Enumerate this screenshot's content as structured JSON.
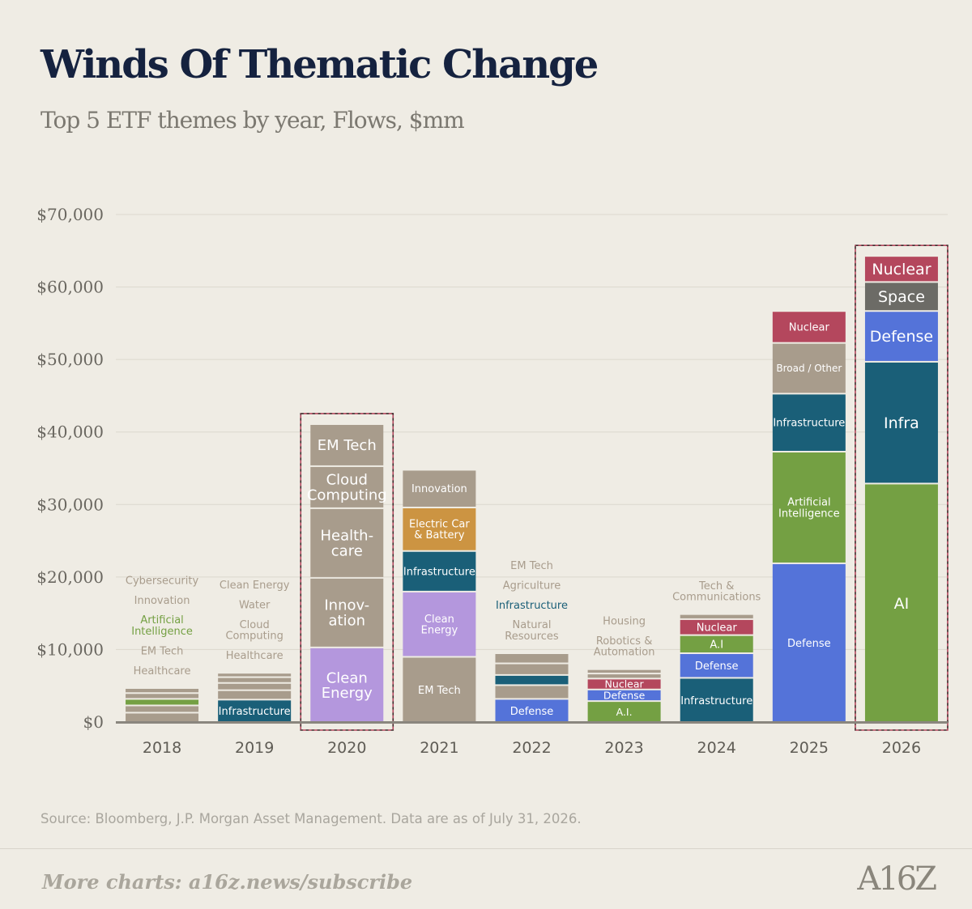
{
  "title": "Winds Of Thematic Change",
  "subtitle": "Top 5 ETF themes by year, Flows, $mm",
  "source": "Source: Bloomberg, J.P. Morgan Asset Management. Data are as of July 31, 2026.",
  "footer": {
    "more_charts": "More charts: a16z.news/subscribe",
    "logo": "A16Z"
  },
  "colors": {
    "gray": "#a89c8c",
    "teal": "#1a5f78",
    "green": "#74a043",
    "lavender": "#b497dd",
    "orange": "#cc9442",
    "blue": "#5473d9",
    "red": "#b4475d",
    "darkgray": "#6c6b66",
    "highlight_box": "#b4475d",
    "axis": "#8a867e"
  },
  "chart_data": {
    "type": "bar",
    "stacked": true,
    "y_tick_labels": [
      "$0",
      "$10,000",
      "$20,000",
      "$30,000",
      "$40,000",
      "$50,000",
      "$60,000",
      "$70,000"
    ],
    "ylim": [
      0,
      70000
    ],
    "grid": true,
    "highlighted_years": [
      "2020",
      "2026"
    ],
    "bars": [
      {
        "year": "2018",
        "segments": [
          {
            "value": 1400,
            "color": "gray",
            "label": ""
          },
          {
            "value": 1000,
            "color": "gray",
            "label": ""
          },
          {
            "value": 900,
            "color": "green",
            "label": ""
          },
          {
            "value": 800,
            "color": "gray",
            "label": ""
          },
          {
            "value": 700,
            "color": "gray",
            "label": ""
          }
        ],
        "side_labels": [
          {
            "text": "Healthcare",
            "color": "gray"
          },
          {
            "text": "EM Tech",
            "color": "gray"
          },
          {
            "text": "Artificial\nIntelligence",
            "color": "green"
          },
          {
            "text": "Innovation",
            "color": "gray"
          },
          {
            "text": "Cybersecurity",
            "color": "gray"
          }
        ]
      },
      {
        "year": "2019",
        "segments": [
          {
            "value": 3200,
            "color": "teal",
            "label": "Infrastructure"
          },
          {
            "value": 1300,
            "color": "gray",
            "label": ""
          },
          {
            "value": 1000,
            "color": "gray",
            "label": ""
          },
          {
            "value": 800,
            "color": "gray",
            "label": ""
          },
          {
            "value": 600,
            "color": "gray",
            "label": ""
          }
        ],
        "side_labels": [
          {
            "text": "Healthcare",
            "color": "gray"
          },
          {
            "text": "Cloud\nComputing",
            "color": "gray"
          },
          {
            "text": "Water",
            "color": "gray"
          },
          {
            "text": "Clean Energy",
            "color": "gray"
          }
        ]
      },
      {
        "year": "2020",
        "segments": [
          {
            "value": 10400,
            "color": "lavender",
            "label": "Clean\nEnergy"
          },
          {
            "value": 9600,
            "color": "gray",
            "label": "Innov-\nation"
          },
          {
            "value": 9600,
            "color": "gray",
            "label": "Health-\ncare"
          },
          {
            "value": 5800,
            "color": "gray",
            "label": "Cloud\nComputing"
          },
          {
            "value": 5800,
            "color": "gray",
            "label": "EM Tech"
          }
        ]
      },
      {
        "year": "2021",
        "segments": [
          {
            "value": 9100,
            "color": "gray",
            "label": "EM Tech"
          },
          {
            "value": 9000,
            "color": "lavender",
            "label": "Clean\nEnergy"
          },
          {
            "value": 5600,
            "color": "teal",
            "label": "Infrastructure"
          },
          {
            "value": 6000,
            "color": "orange",
            "label": "Electric Car\n& Battery"
          },
          {
            "value": 5200,
            "color": "gray",
            "label": "Innovation"
          }
        ]
      },
      {
        "year": "2022",
        "segments": [
          {
            "value": 3300,
            "color": "blue",
            "label": "Defense"
          },
          {
            "value": 1900,
            "color": "gray",
            "label": ""
          },
          {
            "value": 1400,
            "color": "teal",
            "label": ""
          },
          {
            "value": 1600,
            "color": "gray",
            "label": ""
          },
          {
            "value": 1400,
            "color": "gray",
            "label": ""
          }
        ],
        "side_labels": [
          {
            "text": "Natural\nResources",
            "color": "gray"
          },
          {
            "text": "Infrastructure",
            "color": "teal"
          },
          {
            "text": "Agriculture",
            "color": "gray"
          },
          {
            "text": "EM Tech",
            "color": "gray"
          }
        ]
      },
      {
        "year": "2023",
        "segments": [
          {
            "value": 3000,
            "color": "green",
            "label": "A.I."
          },
          {
            "value": 1600,
            "color": "blue",
            "label": "Defense"
          },
          {
            "value": 1500,
            "color": "red",
            "label": "Nuclear"
          },
          {
            "value": 700,
            "color": "gray",
            "label": ""
          },
          {
            "value": 600,
            "color": "gray",
            "label": ""
          }
        ],
        "side_labels": [
          {
            "text": "Robotics &\nAutomation",
            "color": "gray"
          },
          {
            "text": "Housing",
            "color": "gray"
          }
        ]
      },
      {
        "year": "2024",
        "segments": [
          {
            "value": 6200,
            "color": "teal",
            "label": "Infrastructure"
          },
          {
            "value": 3400,
            "color": "blue",
            "label": "Defense"
          },
          {
            "value": 2500,
            "color": "green",
            "label": "A.I"
          },
          {
            "value": 2200,
            "color": "red",
            "label": "Nuclear"
          },
          {
            "value": 700,
            "color": "gray",
            "label": ""
          }
        ],
        "side_labels": [
          {
            "text": "Tech &\nCommunications",
            "color": "gray"
          }
        ]
      },
      {
        "year": "2025",
        "segments": [
          {
            "value": 22000,
            "color": "blue",
            "label": "Defense"
          },
          {
            "value": 15400,
            "color": "green",
            "label": "Artificial\nIntelligence"
          },
          {
            "value": 8000,
            "color": "teal",
            "label": "Infrastructure"
          },
          {
            "value": 7000,
            "color": "gray",
            "label": "Broad / Other"
          },
          {
            "value": 4400,
            "color": "red",
            "label": "Nuclear"
          }
        ]
      },
      {
        "year": "2026",
        "segments": [
          {
            "value": 33000,
            "color": "green",
            "label": "AI"
          },
          {
            "value": 16800,
            "color": "teal",
            "label": "Infra"
          },
          {
            "value": 7000,
            "color": "blue",
            "label": "Defense"
          },
          {
            "value": 4000,
            "color": "darkgray",
            "label": "Space"
          },
          {
            "value": 3600,
            "color": "red",
            "label": "Nuclear"
          }
        ]
      }
    ]
  }
}
